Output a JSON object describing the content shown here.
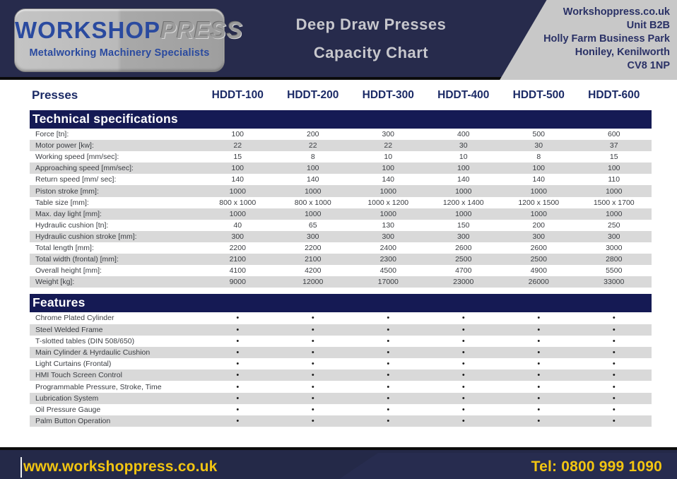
{
  "header": {
    "logo": {
      "brand_bold": "WORKSHOP",
      "brand_light": "PRESS",
      "tagline": "Metalworking Machinery Specialists"
    },
    "title_line1": "Deep Draw Presses",
    "title_line2": "Capacity Chart",
    "address_lines": [
      "Workshoppress.co.uk",
      "Unit B2B",
      "Holly Farm Business Park",
      "Honiley, Kenilworth",
      "CV8 1NP"
    ]
  },
  "table": {
    "presses_label": "Presses",
    "columns": [
      "HDDT-100",
      "HDDT-200",
      "HDDT-300",
      "HDDT-400",
      "HDDT-500",
      "HDDT-600"
    ],
    "technical_title": "Technical specifications",
    "features_title": "Features",
    "spec_rows": [
      {
        "label": "Force [tn]:",
        "values": [
          "100",
          "200",
          "300",
          "400",
          "500",
          "600"
        ]
      },
      {
        "label": "Motor power [kw]:",
        "values": [
          "22",
          "22",
          "22",
          "30",
          "30",
          "37"
        ]
      },
      {
        "label": "Working speed [mm/sec]:",
        "values": [
          "15",
          "8",
          "10",
          "10",
          "8",
          "15"
        ]
      },
      {
        "label": "Approaching speed [mm/sec]:",
        "values": [
          "100",
          "100",
          "100",
          "100",
          "100",
          "100"
        ]
      },
      {
        "label": "Return speed [mm/ sec]:",
        "values": [
          "140",
          "140",
          "140",
          "140",
          "140",
          "110"
        ]
      },
      {
        "label": "Piston stroke [mm]:",
        "values": [
          "1000",
          "1000",
          "1000",
          "1000",
          "1000",
          "1000"
        ]
      },
      {
        "label": "Table size [mm]:",
        "values": [
          "800 x 1000",
          "800 x 1000",
          "1000 x 1200",
          "1200 x 1400",
          "1200 x 1500",
          "1500 x 1700"
        ]
      },
      {
        "label": "Max. day light [mm]:",
        "values": [
          "1000",
          "1000",
          "1000",
          "1000",
          "1000",
          "1000"
        ]
      },
      {
        "label": "Hydraulic cushion [tn]:",
        "values": [
          "40",
          "65",
          "130",
          "150",
          "200",
          "250"
        ]
      },
      {
        "label": "Hydraulic cushion stroke [mm]:",
        "values": [
          "300",
          "300",
          "300",
          "300",
          "300",
          "300"
        ]
      },
      {
        "label": "Total length [mm]:",
        "values": [
          "2200",
          "2200",
          "2400",
          "2600",
          "2600",
          "3000"
        ]
      },
      {
        "label": "Total width (frontal) [mm]:",
        "values": [
          "2100",
          "2100",
          "2300",
          "2500",
          "2500",
          "2800"
        ]
      },
      {
        "label": "Overall height [mm]:",
        "values": [
          "4100",
          "4200",
          "4500",
          "4700",
          "4900",
          "5500"
        ]
      },
      {
        "label": "Weight [kg]:",
        "values": [
          "9000",
          "12000",
          "17000",
          "23000",
          "26000",
          "33000"
        ]
      }
    ],
    "feature_bullet": "•",
    "feature_rows": [
      "Chrome Plated Cylinder",
      "Steel Welded Frame",
      "T-slotted tables (DIN 508/650)",
      "Main Cylinder & Hyrdaulic Cushion",
      "Light Curtains (Frontal)",
      "HMI Touch Screen Control",
      "Programmable Pressure, Stroke, Time",
      "Lubrication System",
      "Oil Pressure Gauge",
      "Palm Button Operation"
    ]
  },
  "footer": {
    "website": "www.workshoppress.co.uk",
    "phone": "Tel: 0800 999 1090"
  },
  "colors": {
    "header_navy": "#272b4c",
    "section_navy": "#151a54",
    "row_gray": "#d9d9d9",
    "footer_yellow": "#f2c511",
    "logo_blue": "#2a4a9f",
    "panel_gray": "#c8c8c8",
    "title_gray": "#c7c7cc"
  }
}
